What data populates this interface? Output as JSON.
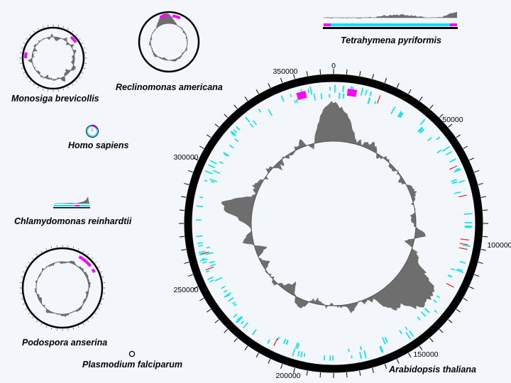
{
  "genomes": [
    {
      "id": "monosiga",
      "name": "Monosiga brevicollis"
    },
    {
      "id": "reclinomonas",
      "name": "Reclinomonas americana"
    },
    {
      "id": "tetrahymena",
      "name": "Tetrahymena pyriformis"
    },
    {
      "id": "homo",
      "name": "Homo sapiens"
    },
    {
      "id": "chlamydomonas",
      "name": "Chlamydomonas reinhardtii"
    },
    {
      "id": "podospora",
      "name": "Podospora anserina"
    },
    {
      "id": "plasmodium",
      "name": "Plasmodium falciparum"
    },
    {
      "id": "arabidopsis",
      "name": "Arabidopsis thaliana"
    }
  ],
  "arabidopsis_ticks": [
    "0",
    "50000",
    "100000",
    "150000",
    "200000",
    "250000",
    "300000",
    "350000"
  ],
  "colors": {
    "background": "#f3f6fb",
    "backbone": "#000000",
    "genes": "#00e5ee",
    "rrna": "#ff00ff",
    "trna": "#e02020",
    "gc_skew": "#6e6e6e"
  }
}
